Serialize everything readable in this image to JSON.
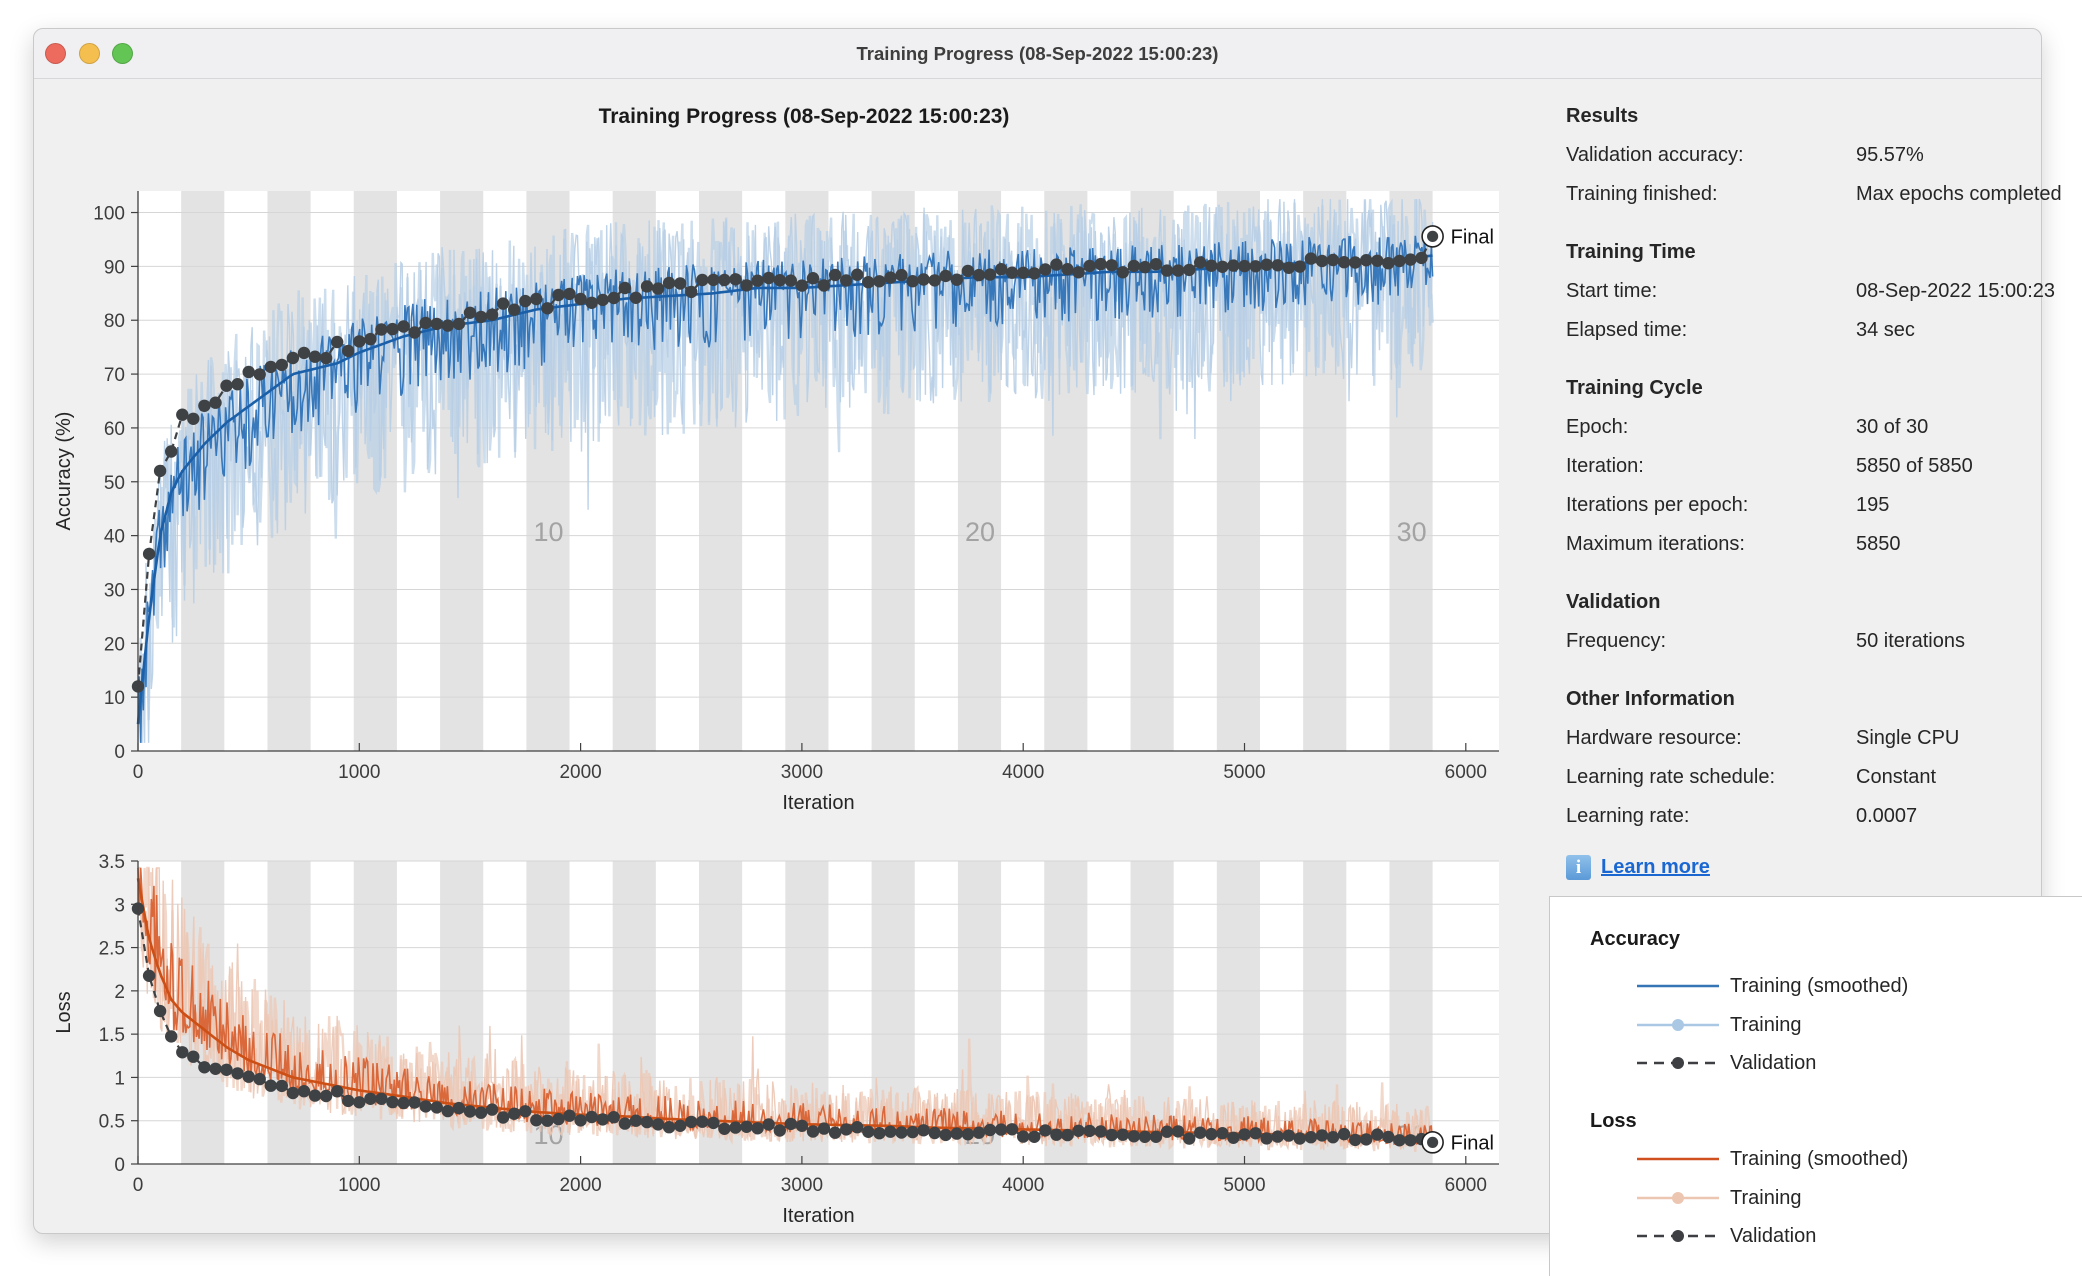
{
  "window": {
    "titlebar_title": "Training Progress (08-Sep-2022 15:00:23)",
    "traffic_lights": [
      "close",
      "minimize",
      "zoom"
    ]
  },
  "info_panel": {
    "sections": [
      {
        "heading": "Results",
        "rows": [
          {
            "label": "Validation accuracy:",
            "value": "95.57%"
          },
          {
            "label": "Training finished:",
            "value": "Max epochs completed"
          }
        ]
      },
      {
        "heading": "Training Time",
        "rows": [
          {
            "label": "Start time:",
            "value": "08-Sep-2022 15:00:23"
          },
          {
            "label": "Elapsed time:",
            "value": "34 sec"
          }
        ]
      },
      {
        "heading": "Training Cycle",
        "rows": [
          {
            "label": "Epoch:",
            "value": "30 of 30"
          },
          {
            "label": "Iteration:",
            "value": "5850 of 5850"
          },
          {
            "label": "Iterations per epoch:",
            "value": "195"
          },
          {
            "label": "Maximum iterations:",
            "value": "5850"
          }
        ]
      },
      {
        "heading": "Validation",
        "rows": [
          {
            "label": "Frequency:",
            "value": "50 iterations"
          }
        ]
      },
      {
        "heading": "Other Information",
        "rows": [
          {
            "label": "Hardware resource:",
            "value": "Single CPU"
          },
          {
            "label": "Learning rate schedule:",
            "value": "Constant"
          },
          {
            "label": "Learning rate:",
            "value": "0.0007"
          }
        ]
      }
    ],
    "learn_more_label": "Learn more"
  },
  "legend": {
    "groups": [
      {
        "heading": "Accuracy",
        "entries": [
          {
            "label": "Training (smoothed)",
            "style": "solid",
            "color": "#3575b5"
          },
          {
            "label": "Training",
            "style": "line-dot",
            "color": "#aac8e3"
          },
          {
            "label": "Validation",
            "style": "dash-dot",
            "color": "#3d3f42"
          }
        ]
      },
      {
        "heading": "Loss",
        "entries": [
          {
            "label": "Training (smoothed)",
            "style": "solid",
            "color": "#d05020"
          },
          {
            "label": "Training",
            "style": "line-dot",
            "color": "#edc6b1"
          },
          {
            "label": "Validation",
            "style": "dash-dot",
            "color": "#3d3f42"
          }
        ]
      }
    ]
  },
  "chart_data": [
    {
      "type": "line",
      "title": "Training Progress (08-Sep-2022 15:00:23)",
      "xlabel": "Iteration",
      "ylabel": "Accuracy (%)",
      "xlim": [
        0,
        6150
      ],
      "ylim": [
        0,
        104
      ],
      "xticks": [
        0,
        1000,
        2000,
        3000,
        4000,
        5000,
        6000
      ],
      "yticks": [
        0,
        10,
        20,
        30,
        40,
        50,
        60,
        70,
        80,
        90,
        100
      ],
      "epochs": 30,
      "iterations_per_epoch": 195,
      "epoch_labels": [
        10,
        20,
        30
      ],
      "final_label": "Final",
      "grid": true,
      "legend_position": "separate-panel",
      "series": [
        {
          "name": "Training (smoothed)",
          "color": "#1b5fa8",
          "anchors": [
            [
              0,
              5
            ],
            [
              50,
              25
            ],
            [
              100,
              40
            ],
            [
              150,
              48
            ],
            [
              200,
              52
            ],
            [
              300,
              57
            ],
            [
              400,
              61
            ],
            [
              500,
              64
            ],
            [
              600,
              67
            ],
            [
              700,
              70
            ],
            [
              800,
              71
            ],
            [
              900,
              72
            ],
            [
              1000,
              74
            ],
            [
              1200,
              77
            ],
            [
              1400,
              79
            ],
            [
              1600,
              80
            ],
            [
              1800,
              82
            ],
            [
              2000,
              83
            ],
            [
              2200,
              84
            ],
            [
              2400,
              84.5
            ],
            [
              2600,
              85
            ],
            [
              2800,
              86
            ],
            [
              3000,
              86
            ],
            [
              3200,
              86.5
            ],
            [
              3400,
              87
            ],
            [
              3600,
              87.5
            ],
            [
              3800,
              88
            ],
            [
              4000,
              88
            ],
            [
              4200,
              88.5
            ],
            [
              4400,
              89
            ],
            [
              4600,
              89
            ],
            [
              4800,
              89.5
            ],
            [
              5000,
              90
            ],
            [
              5200,
              90.5
            ],
            [
              5400,
              91
            ],
            [
              5600,
              91
            ],
            [
              5850,
              92
            ]
          ]
        },
        {
          "name": "Training",
          "color": "#b7cee5",
          "color_strong": "#2f73b8",
          "derived_from": "Training (smoothed)",
          "note": "raw noisy trace around smoothed curve"
        },
        {
          "name": "Validation",
          "color": "#3f4245",
          "interval": 50,
          "final_value": 95.57,
          "anchors": [
            [
              0,
              12
            ],
            [
              50,
              38
            ],
            [
              100,
              51
            ],
            [
              150,
              57
            ],
            [
              200,
              61
            ],
            [
              250,
              63
            ],
            [
              300,
              64
            ],
            [
              350,
              66
            ],
            [
              400,
              67
            ],
            [
              500,
              69
            ],
            [
              600,
              70
            ],
            [
              700,
              72
            ],
            [
              800,
              73
            ],
            [
              900,
              75
            ],
            [
              1000,
              76
            ],
            [
              1100,
              77
            ],
            [
              1200,
              78
            ],
            [
              1300,
              79
            ],
            [
              1400,
              80
            ],
            [
              1500,
              81
            ],
            [
              1600,
              82
            ],
            [
              1800,
              83
            ],
            [
              2000,
              84
            ],
            [
              2200,
              85
            ],
            [
              2400,
              86
            ],
            [
              2600,
              86.5
            ],
            [
              2800,
              87
            ],
            [
              3000,
              87.5
            ],
            [
              3200,
              87.5
            ],
            [
              3400,
              88
            ],
            [
              3600,
              88
            ],
            [
              3800,
              89
            ],
            [
              4000,
              89
            ],
            [
              4200,
              89.5
            ],
            [
              4400,
              89.5
            ],
            [
              4600,
              90
            ],
            [
              4800,
              90
            ],
            [
              5000,
              90.5
            ],
            [
              5200,
              90.5
            ],
            [
              5400,
              91
            ],
            [
              5600,
              91
            ],
            [
              5800,
              91.5
            ],
            [
              5850,
              95.57
            ]
          ]
        }
      ]
    },
    {
      "type": "line",
      "title": "",
      "xlabel": "Iteration",
      "ylabel": "Loss",
      "xlim": [
        0,
        6150
      ],
      "ylim": [
        0,
        3.5
      ],
      "xticks": [
        0,
        1000,
        2000,
        3000,
        4000,
        5000,
        6000
      ],
      "yticks": [
        0,
        0.5,
        1,
        1.5,
        2,
        2.5,
        3,
        3.5
      ],
      "epochs": 30,
      "iterations_per_epoch": 195,
      "epoch_labels": [
        10,
        20,
        30
      ],
      "final_label": "Final",
      "grid": true,
      "legend_position": "separate-panel",
      "series": [
        {
          "name": "Training (smoothed)",
          "color": "#cc4f16",
          "anchors": [
            [
              0,
              3.3
            ],
            [
              50,
              2.6
            ],
            [
              100,
              2.2
            ],
            [
              150,
              1.9
            ],
            [
              200,
              1.75
            ],
            [
              300,
              1.55
            ],
            [
              400,
              1.35
            ],
            [
              500,
              1.2
            ],
            [
              600,
              1.1
            ],
            [
              700,
              1.0
            ],
            [
              800,
              0.95
            ],
            [
              900,
              0.9
            ],
            [
              1000,
              0.85
            ],
            [
              1200,
              0.78
            ],
            [
              1400,
              0.7
            ],
            [
              1600,
              0.65
            ],
            [
              1800,
              0.6
            ],
            [
              2000,
              0.57
            ],
            [
              2200,
              0.55
            ],
            [
              2400,
              0.52
            ],
            [
              2600,
              0.5
            ],
            [
              2800,
              0.48
            ],
            [
              3000,
              0.46
            ],
            [
              3200,
              0.45
            ],
            [
              3400,
              0.44
            ],
            [
              3600,
              0.42
            ],
            [
              3800,
              0.41
            ],
            [
              4000,
              0.4
            ],
            [
              4400,
              0.38
            ],
            [
              4800,
              0.36
            ],
            [
              5200,
              0.34
            ],
            [
              5600,
              0.32
            ],
            [
              5850,
              0.3
            ]
          ]
        },
        {
          "name": "Training",
          "color": "#ecc7b4",
          "color_strong": "#d86233",
          "derived_from": "Training (smoothed)",
          "note": "raw noisy trace around smoothed curve"
        },
        {
          "name": "Validation",
          "color": "#3f4245",
          "interval": 50,
          "final_value": 0.25,
          "anchors": [
            [
              0,
              2.95
            ],
            [
              50,
              2.12
            ],
            [
              100,
              1.72
            ],
            [
              150,
              1.48
            ],
            [
              200,
              1.32
            ],
            [
              250,
              1.25
            ],
            [
              300,
              1.18
            ],
            [
              350,
              1.1
            ],
            [
              400,
              1.05
            ],
            [
              450,
              1.0
            ],
            [
              500,
              0.97
            ],
            [
              600,
              0.9
            ],
            [
              700,
              0.85
            ],
            [
              800,
              0.82
            ],
            [
              900,
              0.78
            ],
            [
              1000,
              0.73
            ],
            [
              1100,
              0.7
            ],
            [
              1200,
              0.67
            ],
            [
              1300,
              0.65
            ],
            [
              1400,
              0.63
            ],
            [
              1500,
              0.6
            ],
            [
              1600,
              0.58
            ],
            [
              1800,
              0.55
            ],
            [
              2000,
              0.52
            ],
            [
              2200,
              0.5
            ],
            [
              2400,
              0.47
            ],
            [
              2600,
              0.45
            ],
            [
              2800,
              0.43
            ],
            [
              3000,
              0.42
            ],
            [
              3200,
              0.4
            ],
            [
              3400,
              0.39
            ],
            [
              3600,
              0.38
            ],
            [
              3800,
              0.37
            ],
            [
              4000,
              0.36
            ],
            [
              4200,
              0.35
            ],
            [
              4400,
              0.35
            ],
            [
              4600,
              0.34
            ],
            [
              4800,
              0.33
            ],
            [
              5000,
              0.33
            ],
            [
              5200,
              0.32
            ],
            [
              5400,
              0.32
            ],
            [
              5600,
              0.31
            ],
            [
              5800,
              0.3
            ],
            [
              5850,
              0.25
            ]
          ]
        }
      ]
    }
  ]
}
